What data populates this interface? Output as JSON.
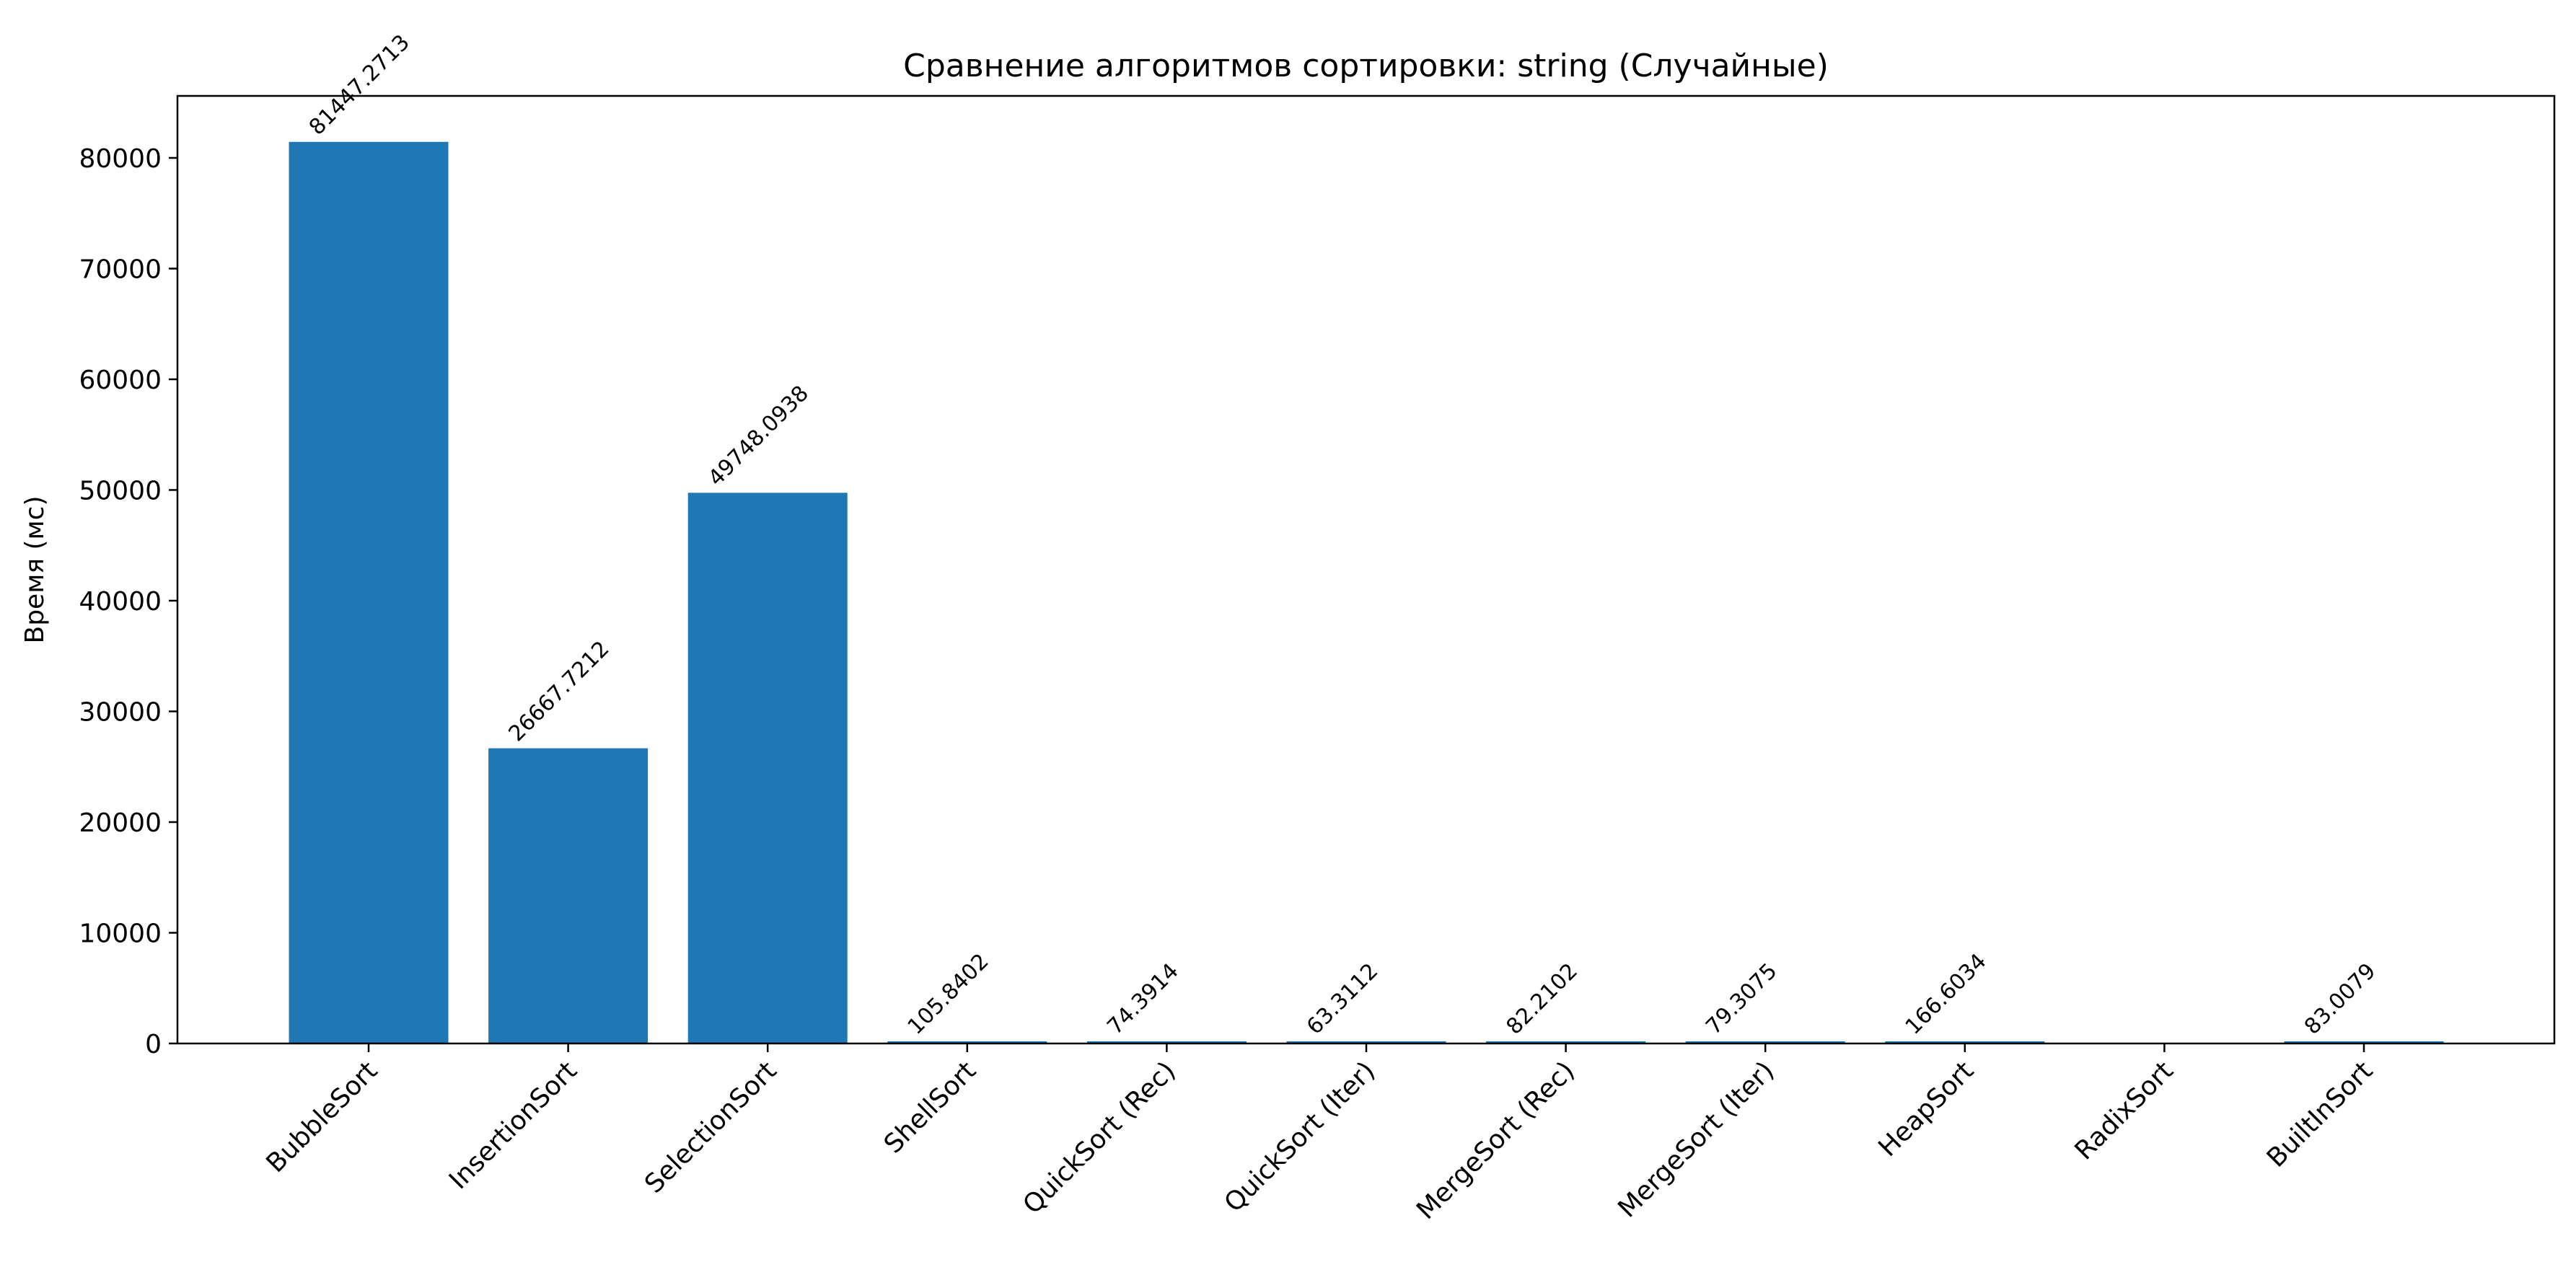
{
  "chart_data": {
    "type": "bar",
    "title": "Сравнение алгоритмов сортировки: string (Случайные)",
    "xlabel": "",
    "ylabel": "Время (мс)",
    "categories": [
      "BubbleSort",
      "InsertionSort",
      "SelectionSort",
      "ShellSort",
      "QuickSort (Rec)",
      "QuickSort (Iter)",
      "MergeSort (Rec)",
      "MergeSort (Iter)",
      "HeapSort",
      "RadixSort",
      "BuiltInSort"
    ],
    "values": [
      81447.2713,
      26667.7212,
      49748.0938,
      105.8402,
      74.3914,
      63.3112,
      82.2102,
      79.3075,
      166.6034,
      null,
      83.0079
    ],
    "data_labels": [
      "81447.2713",
      "26667.7212",
      "49748.0938",
      "105.8402",
      "74.3914",
      "63.3112",
      "82.2102",
      "79.3075",
      "166.6034",
      "",
      "83.0079"
    ],
    "ylim": [
      0,
      85600
    ],
    "yticks": [
      0,
      10000,
      20000,
      30000,
      40000,
      50000,
      60000,
      70000,
      80000
    ],
    "grid": false,
    "legend": "none",
    "bar_color": "#1f77b4"
  }
}
